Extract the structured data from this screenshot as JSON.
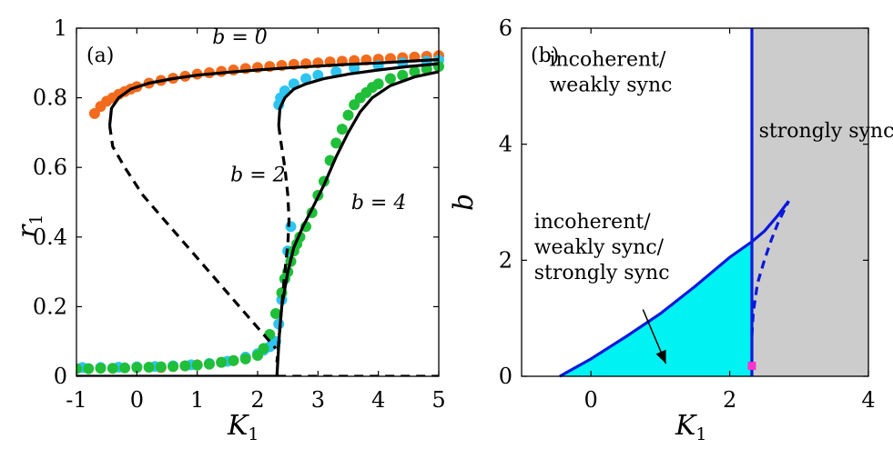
{
  "chart_data": [
    {
      "panel": "(a)",
      "type": "line",
      "title": "",
      "xlabel": "K",
      "xlabel_sub": "1",
      "ylabel": "r",
      "ylabel_sub": "1",
      "xlim": [
        -1,
        5
      ],
      "ylim": [
        0,
        1
      ],
      "xticks": [
        -1,
        0,
        1,
        2,
        3,
        4,
        5
      ],
      "xtick_labels": [
        "-1",
        "0",
        "1",
        "2",
        "3",
        "4",
        "5"
      ],
      "yticks": [
        0,
        0.2,
        0.4,
        0.6,
        0.8,
        1
      ],
      "ytick_labels": [
        "0",
        "0.2",
        "0.4",
        "0.6",
        "0.8",
        "1"
      ],
      "annotations": [
        {
          "text": "b = 0",
          "x": 1.25,
          "y": 0.955
        },
        {
          "text": "b = 2",
          "x": 1.55,
          "y": 0.56
        },
        {
          "text": "b = 4",
          "x": 3.55,
          "y": 0.48
        }
      ],
      "series": [
        {
          "name": "b = 0 theory (stable, upper)",
          "style": "solid",
          "color": "#000000",
          "x": [
            -0.45,
            -0.42,
            -0.3,
            -0.1,
            0.2,
            0.6,
            1.0,
            1.5,
            2.0,
            2.5,
            3.0,
            3.5,
            4.0,
            4.5,
            5.0
          ],
          "y": [
            0.72,
            0.77,
            0.8,
            0.825,
            0.842,
            0.855,
            0.865,
            0.873,
            0.88,
            0.886,
            0.891,
            0.896,
            0.9,
            0.905,
            0.91
          ]
        },
        {
          "name": "b = 0 theory (unstable)",
          "style": "dashed",
          "color": "#000000",
          "x": [
            -0.45,
            -0.4,
            -0.2,
            0.1,
            0.5,
            0.9,
            1.3,
            1.7,
            2.0,
            2.2,
            2.3
          ],
          "y": [
            0.72,
            0.66,
            0.6,
            0.52,
            0.44,
            0.36,
            0.28,
            0.2,
            0.14,
            0.1,
            0.08
          ]
        },
        {
          "name": "b = 2 theory (stable, upper)",
          "style": "solid",
          "color": "#000000",
          "x": [
            2.35,
            2.37,
            2.45,
            2.6,
            2.8,
            3.1,
            3.5,
            4.0,
            4.5,
            5.0
          ],
          "y": [
            0.72,
            0.77,
            0.8,
            0.825,
            0.84,
            0.855,
            0.868,
            0.88,
            0.89,
            0.898
          ]
        },
        {
          "name": "b = 2 theory (unstable)",
          "style": "dashed",
          "color": "#000000",
          "x": [
            2.35,
            2.38,
            2.45,
            2.5,
            2.52,
            2.5,
            2.45,
            2.4,
            2.35,
            2.32
          ],
          "y": [
            0.72,
            0.68,
            0.6,
            0.52,
            0.45,
            0.38,
            0.3,
            0.2,
            0.1,
            0.04
          ]
        },
        {
          "name": "b = 4 theory",
          "style": "solid",
          "color": "#000000",
          "x": [
            2.32,
            2.36,
            2.4,
            2.5,
            2.6,
            2.75,
            2.9,
            3.1,
            3.3,
            3.5,
            3.7,
            3.9,
            4.2,
            4.6,
            5.0
          ],
          "y": [
            0.0,
            0.12,
            0.2,
            0.3,
            0.37,
            0.43,
            0.48,
            0.55,
            0.63,
            0.7,
            0.76,
            0.8,
            0.835,
            0.86,
            0.875
          ]
        },
        {
          "name": "incoherent (stable)",
          "style": "solid",
          "color": "#000000",
          "x": [
            -1,
            2.32
          ],
          "y": [
            0.0,
            0.0
          ]
        },
        {
          "name": "incoherent (unstable)",
          "style": "dashed",
          "color": "#000000",
          "x": [
            2.32,
            5.0
          ],
          "y": [
            0.0,
            0.0
          ]
        },
        {
          "name": "b = 0 simulation",
          "style": "points",
          "color": "#f26b1d",
          "x": [
            -0.7,
            -0.6,
            -0.5,
            -0.4,
            -0.3,
            -0.2,
            -0.1,
            0.0,
            0.2,
            0.4,
            0.6,
            0.8,
            1.0,
            1.2,
            1.4,
            1.6,
            1.8,
            2.0,
            2.2,
            2.4,
            2.6,
            2.8,
            3.0,
            3.2,
            3.4,
            3.6,
            3.8,
            4.0,
            4.2,
            4.4,
            4.6,
            4.8,
            5.0
          ],
          "y": [
            0.755,
            0.775,
            0.79,
            0.8,
            0.81,
            0.818,
            0.825,
            0.832,
            0.842,
            0.85,
            0.856,
            0.862,
            0.868,
            0.872,
            0.876,
            0.88,
            0.884,
            0.887,
            0.89,
            0.893,
            0.896,
            0.898,
            0.9,
            0.903,
            0.905,
            0.907,
            0.909,
            0.911,
            0.913,
            0.915,
            0.917,
            0.919,
            0.921
          ]
        },
        {
          "name": "b = 0 simulation (low branch)",
          "style": "points",
          "color": "#f26b1d",
          "x": [
            0.4,
            0.6,
            0.8,
            1.0,
            1.2,
            1.4,
            1.6
          ],
          "y": [
            0.025,
            0.028,
            0.03,
            0.033,
            0.036,
            0.04,
            0.045
          ]
        },
        {
          "name": "b = 2 simulation",
          "style": "points",
          "color": "#2ec4f0",
          "x": [
            -0.9,
            -0.6,
            -0.3,
            0.0,
            0.3,
            0.6,
            0.9,
            1.2,
            1.5,
            1.8,
            2.0,
            2.1,
            2.2,
            2.3,
            2.35,
            2.4,
            2.45,
            2.5,
            2.55,
            2.35,
            2.38,
            2.45,
            2.6,
            2.8,
            3.0,
            3.3,
            3.6,
            4.0,
            4.4,
            4.8,
            5.0
          ],
          "y": [
            0.025,
            0.025,
            0.026,
            0.027,
            0.028,
            0.03,
            0.033,
            0.037,
            0.043,
            0.055,
            0.065,
            0.075,
            0.085,
            0.1,
            0.15,
            0.22,
            0.28,
            0.36,
            0.43,
            0.78,
            0.8,
            0.82,
            0.84,
            0.855,
            0.865,
            0.875,
            0.885,
            0.892,
            0.9,
            0.905,
            0.908
          ]
        },
        {
          "name": "b = 4 simulation",
          "style": "points",
          "color": "#1fbf3a",
          "x": [
            -1.0,
            -0.8,
            -0.6,
            -0.4,
            -0.2,
            0.0,
            0.2,
            0.4,
            0.6,
            0.8,
            1.0,
            1.2,
            1.4,
            1.6,
            1.8,
            2.0,
            2.1,
            2.2,
            2.3,
            2.4,
            2.45,
            2.5,
            2.55,
            2.6,
            2.65,
            2.7,
            2.8,
            2.9,
            3.0,
            3.1,
            3.2,
            3.3,
            3.4,
            3.5,
            3.6,
            3.7,
            3.8,
            3.9,
            4.0,
            4.2,
            4.4,
            4.6,
            4.8,
            5.0
          ],
          "y": [
            0.022,
            0.022,
            0.023,
            0.023,
            0.024,
            0.025,
            0.026,
            0.027,
            0.028,
            0.03,
            0.032,
            0.035,
            0.04,
            0.045,
            0.05,
            0.06,
            0.08,
            0.12,
            0.18,
            0.24,
            0.28,
            0.3,
            0.33,
            0.36,
            0.38,
            0.4,
            0.43,
            0.47,
            0.52,
            0.56,
            0.62,
            0.67,
            0.71,
            0.75,
            0.78,
            0.8,
            0.815,
            0.83,
            0.84,
            0.855,
            0.865,
            0.875,
            0.882,
            0.89
          ]
        }
      ]
    },
    {
      "panel": "(b)",
      "type": "area",
      "title": "",
      "xlabel": "K",
      "xlabel_sub": "1",
      "ylabel": "b",
      "xlim": [
        -1,
        4
      ],
      "ylim": [
        0,
        6
      ],
      "xticks": [
        0,
        2,
        4
      ],
      "xtick_labels": [
        "0",
        "2",
        "4"
      ],
      "yticks": [
        0,
        2,
        4,
        6
      ],
      "ytick_labels": [
        "0",
        "2",
        "4",
        "6"
      ],
      "regions": [
        {
          "label_lines": [
            "incoherent/",
            "weakly sync"
          ],
          "x": -0.6,
          "y": 5.35
        },
        {
          "label_lines": [
            "strongly sync"
          ],
          "x": 2.42,
          "y": 4.12
        },
        {
          "label_lines": [
            "incoherent/",
            "weakly sync/",
            "strongly sync"
          ],
          "x": -0.82,
          "y": 2.55
        }
      ],
      "strong_region_xmin": 2.32,
      "bistable_fill_color": "#00f2f2",
      "strong_fill_color": "#cccccc",
      "boundary_color": "#0a18dd",
      "marker_color": "#ff33cc",
      "marker": {
        "x": 2.32,
        "y": 0.18
      },
      "vertical_boundary_x": 2.32,
      "lower_curve": {
        "x": [
          -0.45,
          0.0,
          0.5,
          1.0,
          1.5,
          2.0,
          2.32,
          2.5,
          2.7,
          2.85
        ],
        "y": [
          0.0,
          0.3,
          0.68,
          1.08,
          1.55,
          2.05,
          2.32,
          2.5,
          2.78,
          3.02
        ]
      },
      "dashed_curve": {
        "x": [
          2.32,
          2.34,
          2.4,
          2.5,
          2.6,
          2.7,
          2.85
        ],
        "y": [
          0.7,
          1.1,
          1.6,
          2.0,
          2.35,
          2.65,
          3.02
        ]
      },
      "arrow": {
        "from": [
          0.75,
          1.15
        ],
        "to": [
          1.08,
          0.22
        ]
      }
    }
  ]
}
